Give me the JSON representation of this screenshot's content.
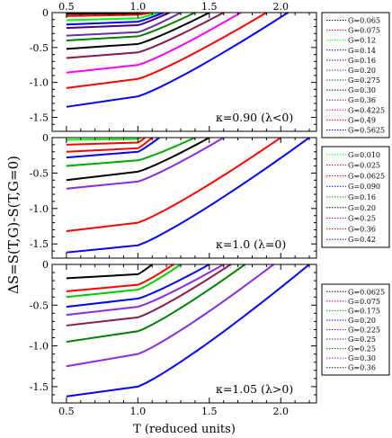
{
  "figure": {
    "ylabel": "ΔS=S(T,G)-S(T,G=0)",
    "xlabel": "T (reduced units)"
  },
  "chart_data": [
    {
      "type": "line",
      "panel": "top",
      "annotation": "κ=0.90 (λ<0)",
      "xlim": [
        0.4,
        2.25
      ],
      "ylim": [
        -1.7,
        0
      ],
      "x_ticks": [
        0.5,
        1.0,
        1.5,
        2.0
      ],
      "x_tick_labels": [
        "0.5",
        "1.0",
        "1.5",
        "2.0"
      ],
      "y_ticks": [
        0,
        -0.5,
        -1.0,
        -1.5
      ],
      "y_tick_labels": [
        "0",
        "-0.5",
        "-1.0",
        "-1.5"
      ],
      "series": [
        {
          "name": "G=0.065",
          "color": "#000000",
          "y_low": -0.02,
          "y_kink": -0.01,
          "t_end": 1.05
        },
        {
          "name": "G=0.075",
          "color": "#ff0000",
          "y_low": -0.05,
          "y_kink": -0.03,
          "t_end": 1.1
        },
        {
          "name": "G=0.12",
          "color": "#00ff00",
          "y_low": -0.11,
          "y_kink": -0.08,
          "t_end": 1.15
        },
        {
          "name": "G=0.14",
          "color": "#0000ff",
          "y_low": -0.17,
          "y_kink": -0.13,
          "t_end": 1.18
        },
        {
          "name": "G=0.16",
          "color": "#4b0082",
          "y_low": -0.22,
          "y_kink": -0.18,
          "t_end": 1.22
        },
        {
          "name": "G=0.20",
          "color": "#6a2ea0",
          "y_low": -0.33,
          "y_kink": -0.28,
          "t_end": 1.3
        },
        {
          "name": "G=0.275",
          "color": "#008000",
          "y_low": -0.4,
          "y_kink": -0.34,
          "t_end": 1.4
        },
        {
          "name": "G=0.30",
          "color": "#000000",
          "y_low": -0.52,
          "y_kink": -0.45,
          "t_end": 1.5
        },
        {
          "name": "G=0.36",
          "color": "#8b1a4a",
          "y_low": -0.65,
          "y_kink": -0.57,
          "t_end": 1.6
        },
        {
          "name": "G=0.4225",
          "color": "#ff00ff",
          "y_low": -0.86,
          "y_kink": -0.75,
          "t_end": 1.72
        },
        {
          "name": "G=0.49",
          "color": "#ff0000",
          "y_low": -1.08,
          "y_kink": -0.95,
          "t_end": 1.9
        },
        {
          "name": "G=0.5625",
          "color": "#0000ff",
          "y_low": -1.35,
          "y_kink": -1.2,
          "t_end": 2.05
        }
      ]
    },
    {
      "type": "line",
      "panel": "middle",
      "annotation": "κ=1.0 (λ=0)",
      "xlim": [
        0.4,
        2.25
      ],
      "ylim": [
        -1.7,
        0
      ],
      "x_ticks": [
        0.5,
        1.0,
        1.5,
        2.0
      ],
      "x_tick_labels": [
        "0.5",
        "1.0",
        "1.5",
        "2.0"
      ],
      "y_ticks": [
        0,
        -0.5,
        -1.0,
        -1.5
      ],
      "y_tick_labels": [
        "0",
        "-0.5",
        "-1.0",
        "-1.5"
      ],
      "series": [
        {
          "name": "G=0.010",
          "color": "#00ff00",
          "y_low": -0.03,
          "y_kink": -0.02,
          "t_end": 1.02
        },
        {
          "name": "G=0.025",
          "color": "#ff0000",
          "y_low": -0.1,
          "y_kink": -0.07,
          "t_end": 1.05
        },
        {
          "name": "G=0.0625",
          "color": "#ff0000",
          "y_low": -0.2,
          "y_kink": -0.15,
          "t_end": 1.1
        },
        {
          "name": "G=0.090",
          "color": "#0000ff",
          "y_low": -0.28,
          "y_kink": -0.2,
          "t_end": 1.15
        },
        {
          "name": "G=0.16",
          "color": "#00aa00",
          "y_low": -0.4,
          "y_kink": -0.32,
          "t_end": 1.4
        },
        {
          "name": "G=0.20",
          "color": "#000000",
          "y_low": -0.6,
          "y_kink": -0.48,
          "t_end": 1.5
        },
        {
          "name": "G=0.25",
          "color": "#8a2be2",
          "y_low": -0.72,
          "y_kink": -0.62,
          "t_end": 1.6
        },
        {
          "name": "G=0.36",
          "color": "#ff0000",
          "y_low": -1.32,
          "y_kink": -1.2,
          "t_end": 2.0
        },
        {
          "name": "G=0.42",
          "color": "#0000ff",
          "y_low": -1.62,
          "y_kink": -1.52,
          "t_end": 2.2
        }
      ]
    },
    {
      "type": "line",
      "panel": "bottom",
      "annotation": "κ=1.05 (λ>0)",
      "xlim": [
        0.4,
        2.25
      ],
      "ylim": [
        -1.7,
        0
      ],
      "x_ticks": [
        0.5,
        1.0,
        1.5,
        2.0
      ],
      "x_tick_labels": [
        "0.5",
        "1.0",
        "1.5",
        "2.0"
      ],
      "y_ticks": [
        0,
        -0.5,
        -1.0,
        -1.5
      ],
      "y_tick_labels": [
        "0",
        "-0.5",
        "-1.0",
        "-1.5"
      ],
      "series": [
        {
          "name": "G=0.0625",
          "color": "#000000",
          "y_low": -0.17,
          "y_kink": -0.12,
          "t_end": 1.1
        },
        {
          "name": "G=0.075",
          "color": "#ff0000",
          "y_low": -0.33,
          "y_kink": -0.25,
          "t_end": 1.25
        },
        {
          "name": "G=0.175",
          "color": "#00cc00",
          "y_low": -0.4,
          "y_kink": -0.31,
          "t_end": 1.3
        },
        {
          "name": "G=0.20",
          "color": "#0000ff",
          "y_low": -0.52,
          "y_kink": -0.42,
          "t_end": 1.5
        },
        {
          "name": "G=0.225",
          "color": "#8a2be2",
          "y_low": -0.62,
          "y_kink": -0.52,
          "t_end": 1.6
        },
        {
          "name": "G=0.25",
          "color": "#8b1a4a",
          "y_low": -0.75,
          "y_kink": -0.65,
          "t_end": 1.65
        },
        {
          "name": "G=0.25",
          "color": "#008000",
          "y_low": -0.95,
          "y_kink": -0.82,
          "t_end": 1.75
        },
        {
          "name": "G=0.30",
          "color": "#8a2be2",
          "y_low": -1.25,
          "y_kink": -1.1,
          "t_end": 1.95
        },
        {
          "name": "G=0.36",
          "color": "#0000ff",
          "y_low": -1.62,
          "y_kink": -1.5,
          "t_end": 2.2
        }
      ]
    }
  ]
}
